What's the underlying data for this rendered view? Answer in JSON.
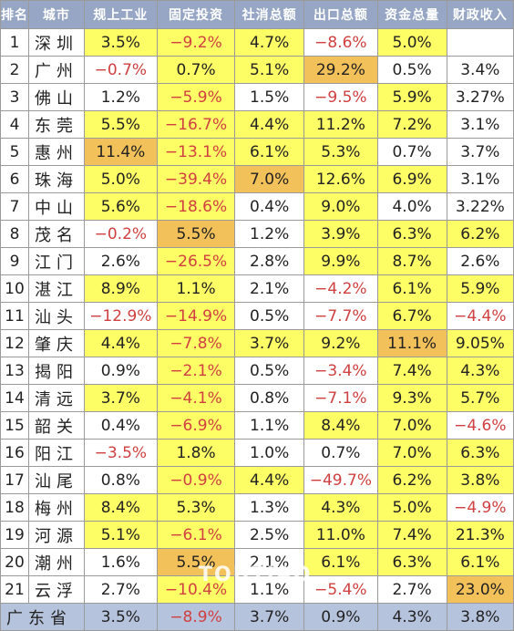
{
  "columns": [
    "排名",
    "城市",
    "规上工业",
    "固定投资",
    "社消总额",
    "出口总额",
    "资金总量",
    "财政收入"
  ],
  "colors": {
    "header": "#96a6c4",
    "highlight_yellow": "#fdfd66",
    "highlight_orange": "#f3c159",
    "negative_text": "#d04040",
    "total_row": "#b6c3dc"
  },
  "rows": [
    {
      "rank": "1",
      "city": "深圳",
      "cells": [
        {
          "v": "3.5%",
          "hl": "y"
        },
        {
          "v": "−9.2%",
          "hl": "y",
          "neg": true
        },
        {
          "v": "4.7%",
          "hl": "y"
        },
        {
          "v": "−8.6%",
          "hl": "",
          "neg": true
        },
        {
          "v": "5.0%",
          "hl": "y"
        },
        {
          "v": "",
          "hl": ""
        }
      ]
    },
    {
      "rank": "2",
      "city": "广州",
      "cells": [
        {
          "v": "−0.7%",
          "hl": "",
          "neg": true
        },
        {
          "v": "0.7%",
          "hl": "y"
        },
        {
          "v": "5.1%",
          "hl": "y"
        },
        {
          "v": "29.2%",
          "hl": "o"
        },
        {
          "v": "0.5%",
          "hl": ""
        },
        {
          "v": "3.4%",
          "hl": ""
        }
      ]
    },
    {
      "rank": "3",
      "city": "佛山",
      "cells": [
        {
          "v": "1.2%",
          "hl": ""
        },
        {
          "v": "−5.9%",
          "hl": "y",
          "neg": true
        },
        {
          "v": "1.5%",
          "hl": ""
        },
        {
          "v": "−9.5%",
          "hl": "",
          "neg": true
        },
        {
          "v": "5.9%",
          "hl": "y"
        },
        {
          "v": "3.27%",
          "hl": ""
        }
      ]
    },
    {
      "rank": "4",
      "city": "东莞",
      "cells": [
        {
          "v": "5.5%",
          "hl": "y"
        },
        {
          "v": "−16.7%",
          "hl": "y",
          "neg": true
        },
        {
          "v": "4.4%",
          "hl": "y"
        },
        {
          "v": "11.2%",
          "hl": "y"
        },
        {
          "v": "7.2%",
          "hl": "y"
        },
        {
          "v": "3.1%",
          "hl": ""
        }
      ]
    },
    {
      "rank": "5",
      "city": "惠州",
      "cells": [
        {
          "v": "11.4%",
          "hl": "o"
        },
        {
          "v": "−13.1%",
          "hl": "y",
          "neg": true
        },
        {
          "v": "6.1%",
          "hl": "y"
        },
        {
          "v": "5.3%",
          "hl": "y"
        },
        {
          "v": "0.7%",
          "hl": ""
        },
        {
          "v": "3.7%",
          "hl": ""
        }
      ]
    },
    {
      "rank": "6",
      "city": "珠海",
      "cells": [
        {
          "v": "5.0%",
          "hl": "y"
        },
        {
          "v": "−39.4%",
          "hl": "y",
          "neg": true
        },
        {
          "v": "7.0%",
          "hl": "o"
        },
        {
          "v": "12.6%",
          "hl": "y"
        },
        {
          "v": "6.9%",
          "hl": "y"
        },
        {
          "v": "3.1%",
          "hl": ""
        }
      ]
    },
    {
      "rank": "7",
      "city": "中山",
      "cells": [
        {
          "v": "5.6%",
          "hl": "y"
        },
        {
          "v": "−18.6%",
          "hl": "y",
          "neg": true
        },
        {
          "v": "0.4%",
          "hl": ""
        },
        {
          "v": "9.0%",
          "hl": "y"
        },
        {
          "v": "4.0%",
          "hl": ""
        },
        {
          "v": "3.22%",
          "hl": ""
        }
      ]
    },
    {
      "rank": "8",
      "city": "茂名",
      "cells": [
        {
          "v": "−0.2%",
          "hl": "",
          "neg": true
        },
        {
          "v": "5.5%",
          "hl": "o"
        },
        {
          "v": "1.2%",
          "hl": ""
        },
        {
          "v": "3.9%",
          "hl": "y"
        },
        {
          "v": "6.3%",
          "hl": "y"
        },
        {
          "v": "6.2%",
          "hl": "y"
        }
      ]
    },
    {
      "rank": "9",
      "city": "江门",
      "cells": [
        {
          "v": "2.6%",
          "hl": ""
        },
        {
          "v": "−26.5%",
          "hl": "y",
          "neg": true
        },
        {
          "v": "2.8%",
          "hl": ""
        },
        {
          "v": "9.9%",
          "hl": "y"
        },
        {
          "v": "8.7%",
          "hl": "y"
        },
        {
          "v": "2.6%",
          "hl": ""
        }
      ]
    },
    {
      "rank": "10",
      "city": "湛江",
      "cells": [
        {
          "v": "8.9%",
          "hl": "y"
        },
        {
          "v": "1.1%",
          "hl": "y"
        },
        {
          "v": "2.1%",
          "hl": ""
        },
        {
          "v": "−4.2%",
          "hl": "",
          "neg": true
        },
        {
          "v": "6.1%",
          "hl": "y"
        },
        {
          "v": "5.9%",
          "hl": "y"
        }
      ]
    },
    {
      "rank": "11",
      "city": "汕头",
      "cells": [
        {
          "v": "−12.9%",
          "hl": "",
          "neg": true
        },
        {
          "v": "−14.9%",
          "hl": "y",
          "neg": true
        },
        {
          "v": "0.5%",
          "hl": ""
        },
        {
          "v": "−7.7%",
          "hl": "",
          "neg": true
        },
        {
          "v": "6.7%",
          "hl": "y"
        },
        {
          "v": "−4.4%",
          "hl": "",
          "neg": true
        }
      ]
    },
    {
      "rank": "12",
      "city": "肇庆",
      "cells": [
        {
          "v": "4.4%",
          "hl": "y"
        },
        {
          "v": "−7.8%",
          "hl": "y",
          "neg": true
        },
        {
          "v": "3.7%",
          "hl": "y"
        },
        {
          "v": "9.2%",
          "hl": "y"
        },
        {
          "v": "11.1%",
          "hl": "o"
        },
        {
          "v": "9.05%",
          "hl": "y"
        }
      ]
    },
    {
      "rank": "13",
      "city": "揭阳",
      "cells": [
        {
          "v": "0.9%",
          "hl": ""
        },
        {
          "v": "−2.1%",
          "hl": "y",
          "neg": true
        },
        {
          "v": "0.5%",
          "hl": ""
        },
        {
          "v": "−3.4%",
          "hl": "",
          "neg": true
        },
        {
          "v": "7.4%",
          "hl": "y"
        },
        {
          "v": "4.3%",
          "hl": "y"
        }
      ]
    },
    {
      "rank": "14",
      "city": "清远",
      "cells": [
        {
          "v": "3.7%",
          "hl": "y"
        },
        {
          "v": "−4.1%",
          "hl": "y",
          "neg": true
        },
        {
          "v": "0.8%",
          "hl": ""
        },
        {
          "v": "−7.1%",
          "hl": "",
          "neg": true
        },
        {
          "v": "9.3%",
          "hl": "y"
        },
        {
          "v": "5.7%",
          "hl": "y"
        }
      ]
    },
    {
      "rank": "15",
      "city": "韶关",
      "cells": [
        {
          "v": "0.4%",
          "hl": ""
        },
        {
          "v": "−6.9%",
          "hl": "y",
          "neg": true
        },
        {
          "v": "1.1%",
          "hl": ""
        },
        {
          "v": "8.4%",
          "hl": "y"
        },
        {
          "v": "7.0%",
          "hl": "y"
        },
        {
          "v": "−4.6%",
          "hl": "",
          "neg": true
        }
      ]
    },
    {
      "rank": "16",
      "city": "阳江",
      "cells": [
        {
          "v": "−3.5%",
          "hl": "",
          "neg": true
        },
        {
          "v": "1.8%",
          "hl": "y"
        },
        {
          "v": "1.0%",
          "hl": ""
        },
        {
          "v": "0.7%",
          "hl": ""
        },
        {
          "v": "7.0%",
          "hl": "y"
        },
        {
          "v": "6.3%",
          "hl": "y"
        }
      ]
    },
    {
      "rank": "17",
      "city": "汕尾",
      "cells": [
        {
          "v": "0.8%",
          "hl": ""
        },
        {
          "v": "−0.9%",
          "hl": "y",
          "neg": true
        },
        {
          "v": "4.4%",
          "hl": "y"
        },
        {
          "v": "−49.7%",
          "hl": "",
          "neg": true
        },
        {
          "v": "6.2%",
          "hl": "y"
        },
        {
          "v": "3.8%",
          "hl": "y"
        }
      ]
    },
    {
      "rank": "18",
      "city": "梅州",
      "cells": [
        {
          "v": "8.4%",
          "hl": "y"
        },
        {
          "v": "5.3%",
          "hl": "y"
        },
        {
          "v": "1.3%",
          "hl": ""
        },
        {
          "v": "4.3%",
          "hl": "y"
        },
        {
          "v": "5.0%",
          "hl": "y"
        },
        {
          "v": "−4.9%",
          "hl": "",
          "neg": true
        }
      ]
    },
    {
      "rank": "19",
      "city": "河源",
      "cells": [
        {
          "v": "5.1%",
          "hl": "y"
        },
        {
          "v": "−6.1%",
          "hl": "y",
          "neg": true
        },
        {
          "v": "2.5%",
          "hl": ""
        },
        {
          "v": "11.0%",
          "hl": "y"
        },
        {
          "v": "7.4%",
          "hl": "y"
        },
        {
          "v": "21.3%",
          "hl": "y"
        }
      ]
    },
    {
      "rank": "20",
      "city": "潮州",
      "cells": [
        {
          "v": "1.6%",
          "hl": ""
        },
        {
          "v": "5.5%",
          "hl": "o"
        },
        {
          "v": "2.1%",
          "hl": ""
        },
        {
          "v": "6.1%",
          "hl": "y"
        },
        {
          "v": "6.3%",
          "hl": "y"
        },
        {
          "v": "6.1%",
          "hl": "y"
        }
      ]
    },
    {
      "rank": "21",
      "city": "云浮",
      "cells": [
        {
          "v": "2.7%",
          "hl": ""
        },
        {
          "v": "−10.4%",
          "hl": "y",
          "neg": true
        },
        {
          "v": "1.1%",
          "hl": ""
        },
        {
          "v": "−5.4%",
          "hl": "",
          "neg": true
        },
        {
          "v": "2.7%",
          "hl": ""
        },
        {
          "v": "23.0%",
          "hl": "o"
        }
      ]
    }
  ],
  "total": {
    "label": "广东省",
    "cells": [
      {
        "v": "3.5%"
      },
      {
        "v": "−8.9%",
        "neg": true
      },
      {
        "v": "3.7%"
      },
      {
        "v": "0.9%"
      },
      {
        "v": "4.3%"
      },
      {
        "v": "3.8%"
      }
    ]
  },
  "watermark": "TOUTIAO"
}
